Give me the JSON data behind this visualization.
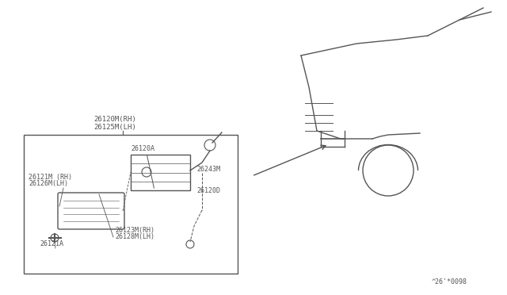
{
  "bg_color": "#ffffff",
  "line_color": "#555555",
  "text_color": "#555555",
  "fig_width": 6.4,
  "fig_height": 3.72,
  "dpi": 100,
  "watermark": "^26'*0098",
  "parts": {
    "box_label_line1": "26120M(RH)",
    "box_label_line2": "26125M(LH)",
    "label_26120A": "26120A",
    "label_26121M": "26121M (RH)",
    "label_26126M": "26126M(LH)",
    "label_26243M": "26243M",
    "label_26120D": "26120D",
    "label_26123M": "26123M(RH)",
    "label_26128M": "26128M(LH)",
    "label_26121A": "26121A"
  }
}
